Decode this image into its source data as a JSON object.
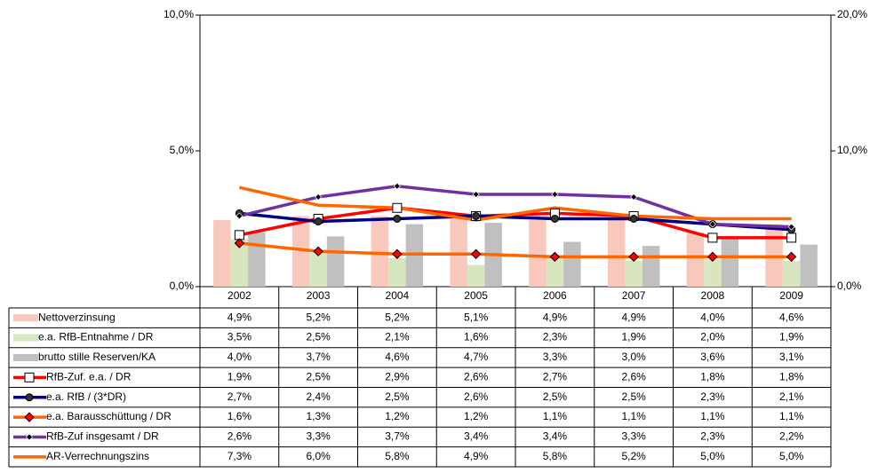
{
  "chart_data": {
    "type": "combo",
    "categories": [
      "2002",
      "2003",
      "2004",
      "2005",
      "2006",
      "2007",
      "2008",
      "2009"
    ],
    "ylim": [
      0,
      10
    ],
    "yticks": [
      {
        "value": 0,
        "label": "0,0%"
      },
      {
        "value": 5,
        "label": "5,0%"
      },
      {
        "value": 10,
        "label": "10,0%"
      }
    ],
    "y2lim": [
      0,
      20
    ],
    "y2ticks": [
      {
        "value": 0,
        "label": "0,0%"
      },
      {
        "value": 10,
        "label": "10,0%"
      },
      {
        "value": 20,
        "label": "20,0%"
      }
    ],
    "series": [
      {
        "name": "Nettoverzinsung",
        "kind": "bar",
        "axis": "y2",
        "color": "#f8c8bd",
        "values": [
          4.9,
          5.2,
          5.2,
          5.1,
          4.9,
          4.9,
          4.0,
          4.6
        ],
        "value_labels": [
          "4,9%",
          "5,2%",
          "5,2%",
          "5,1%",
          "4,9%",
          "4,9%",
          "4,0%",
          "4,6%"
        ]
      },
      {
        "name": "e.a. RfB-Entnahme / DR",
        "kind": "bar",
        "axis": "y2",
        "color": "#d8e6c0",
        "values": [
          3.5,
          2.5,
          2.1,
          1.6,
          2.3,
          1.9,
          2.0,
          1.9
        ],
        "value_labels": [
          "3,5%",
          "2,5%",
          "2,1%",
          "1,6%",
          "2,3%",
          "1,9%",
          "2,0%",
          "1,9%"
        ]
      },
      {
        "name": "brutto stille Reserven/KA",
        "kind": "bar",
        "axis": "y2",
        "color": "#c0c0c0",
        "values": [
          4.0,
          3.7,
          4.6,
          4.7,
          3.3,
          3.0,
          3.6,
          3.1
        ],
        "value_labels": [
          "4,0%",
          "3,7%",
          "4,6%",
          "4,7%",
          "3,3%",
          "3,0%",
          "3,6%",
          "3,1%"
        ]
      },
      {
        "name": "RfB-Zuf. e.a. / DR",
        "kind": "line",
        "axis": "y",
        "color": "#ff0000",
        "marker": "square",
        "values": [
          1.9,
          2.5,
          2.9,
          2.6,
          2.7,
          2.6,
          1.8,
          1.8
        ],
        "value_labels": [
          "1,9%",
          "2,5%",
          "2,9%",
          "2,6%",
          "2,7%",
          "2,6%",
          "1,8%",
          "1,8%"
        ]
      },
      {
        "name": "e.a. RfB / (3*DR)",
        "kind": "line",
        "axis": "y",
        "color": "#000080",
        "marker": "circle",
        "values": [
          2.7,
          2.4,
          2.5,
          2.6,
          2.5,
          2.5,
          2.3,
          2.1
        ],
        "value_labels": [
          "2,7%",
          "2,4%",
          "2,5%",
          "2,6%",
          "2,5%",
          "2,5%",
          "2,3%",
          "2,1%"
        ]
      },
      {
        "name": "e.a. Barausschüttung / DR",
        "kind": "line",
        "axis": "y",
        "color": "#ff6600",
        "marker": "diamond",
        "values": [
          1.6,
          1.3,
          1.2,
          1.2,
          1.1,
          1.1,
          1.1,
          1.1
        ],
        "value_labels": [
          "1,6%",
          "1,3%",
          "1,2%",
          "1,2%",
          "1,1%",
          "1,1%",
          "1,1%",
          "1,1%"
        ]
      },
      {
        "name": "RfB-Zuf insgesamt / DR",
        "kind": "line",
        "axis": "y",
        "color": "#7030a0",
        "marker": "smalldiamond",
        "values": [
          2.6,
          3.3,
          3.7,
          3.4,
          3.4,
          3.3,
          2.3,
          2.2
        ],
        "value_labels": [
          "2,6%",
          "3,3%",
          "3,7%",
          "3,4%",
          "3,4%",
          "3,3%",
          "2,3%",
          "2,2%"
        ]
      },
      {
        "name": "AR-Verrechnungszins",
        "kind": "line",
        "axis": "y2",
        "color": "#ff6600",
        "marker": "none",
        "values": [
          7.3,
          6.0,
          5.8,
          4.9,
          5.8,
          5.2,
          5.0,
          5.0
        ],
        "value_labels": [
          "7,3%",
          "6,0%",
          "5,8%",
          "4,9%",
          "5,8%",
          "5,2%",
          "5,0%",
          "5,0%"
        ]
      }
    ]
  }
}
